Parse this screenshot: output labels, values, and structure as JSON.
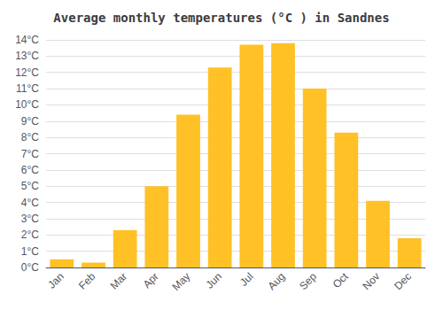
{
  "chart_data": {
    "type": "bar",
    "title": "Average monthly temperatures (°C ) in Sandnes",
    "categories": [
      "Jan",
      "Feb",
      "Mar",
      "Apr",
      "May",
      "Jun",
      "Jul",
      "Aug",
      "Sep",
      "Oct",
      "Nov",
      "Dec"
    ],
    "values": [
      0.5,
      0.3,
      2.3,
      5.0,
      9.4,
      12.3,
      13.7,
      13.8,
      11.0,
      8.3,
      4.1,
      1.8
    ],
    "color": "#FFC125",
    "ylim": [
      0,
      14
    ],
    "yticks": [
      {
        "value": 0,
        "label": "0°C"
      },
      {
        "value": 1,
        "label": "1°C"
      },
      {
        "value": 2,
        "label": "2°C"
      },
      {
        "value": 3,
        "label": "3°C"
      },
      {
        "value": 4,
        "label": "4°C"
      },
      {
        "value": 5,
        "label": "5°C"
      },
      {
        "value": 6,
        "label": "6°C"
      },
      {
        "value": 7,
        "label": "7°C"
      },
      {
        "value": 8,
        "label": "8°C"
      },
      {
        "value": 9,
        "label": "9°C"
      },
      {
        "value": 10,
        "label": "10°C"
      },
      {
        "value": 11,
        "label": "11°C"
      },
      {
        "value": 12,
        "label": "12°C"
      },
      {
        "value": 13,
        "label": "13°C"
      },
      {
        "value": 14,
        "label": "14°C"
      }
    ],
    "grid": true
  }
}
